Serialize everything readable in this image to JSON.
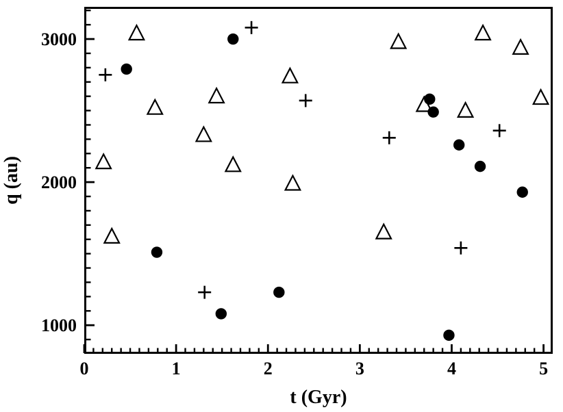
{
  "chart_data": {
    "type": "scatter",
    "title": "",
    "xlabel": "t (Gyr)",
    "ylabel": "q (au)",
    "xlim": [
      0,
      5.1
    ],
    "ylim": [
      800,
      3225
    ],
    "grid": false,
    "legend": null,
    "x_major_ticks": [
      0,
      1,
      2,
      3,
      4,
      5
    ],
    "x_tick_labels": [
      "0",
      "1",
      "2",
      "3",
      "4",
      "5"
    ],
    "x_minor_step": 0.1,
    "y_major_ticks": [
      1000,
      2000,
      3000
    ],
    "y_tick_labels": [
      "1000",
      "2000",
      "3000"
    ],
    "y_minor_step": 100,
    "series": [
      {
        "name": "open-triangles",
        "marker": "triangle-open",
        "color": "#000000",
        "points": [
          [
            0.21,
            2140
          ],
          [
            0.3,
            1620
          ],
          [
            0.57,
            3040
          ],
          [
            0.77,
            2520
          ],
          [
            1.3,
            2330
          ],
          [
            1.44,
            2600
          ],
          [
            1.62,
            2120
          ],
          [
            2.24,
            2740
          ],
          [
            2.27,
            1990
          ],
          [
            3.26,
            1650
          ],
          [
            3.42,
            2980
          ],
          [
            3.7,
            2540
          ],
          [
            4.15,
            2500
          ],
          [
            4.34,
            3040
          ],
          [
            4.75,
            2940
          ],
          [
            4.97,
            2590
          ]
        ]
      },
      {
        "name": "filled-circles",
        "marker": "circle-filled",
        "color": "#000000",
        "points": [
          [
            0.46,
            2790
          ],
          [
            0.79,
            1510
          ],
          [
            1.49,
            1080
          ],
          [
            1.62,
            3000
          ],
          [
            2.12,
            1230
          ],
          [
            3.76,
            2580
          ],
          [
            3.8,
            2490
          ],
          [
            3.97,
            930
          ],
          [
            4.08,
            2260
          ],
          [
            4.31,
            2110
          ],
          [
            4.77,
            1930
          ]
        ]
      },
      {
        "name": "plus-crosses",
        "marker": "plus",
        "color": "#000000",
        "points": [
          [
            0.23,
            2750
          ],
          [
            1.31,
            1230
          ],
          [
            1.82,
            3080
          ],
          [
            2.41,
            2570
          ],
          [
            3.32,
            2310
          ],
          [
            4.1,
            1540
          ],
          [
            4.52,
            2360
          ]
        ]
      }
    ]
  },
  "colors": {
    "foreground": "#000000",
    "background": "#ffffff"
  }
}
